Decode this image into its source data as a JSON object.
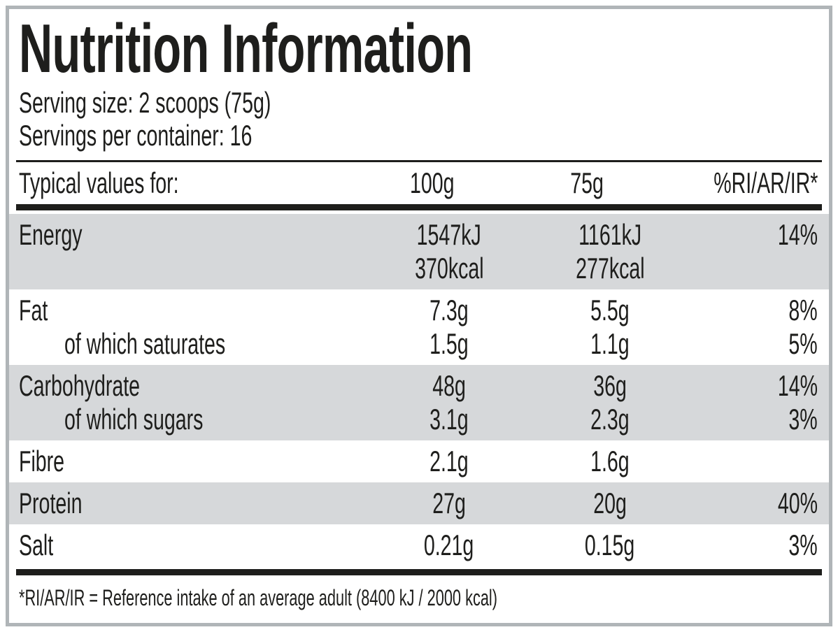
{
  "colors": {
    "text": "#1e1e1c",
    "shaded_row": "#d6d8da",
    "frame_border": "#b0b5b8",
    "background": "#ffffff"
  },
  "header": {
    "title": "Nutrition Information",
    "serving_size": "Serving size: 2 scoops (75g)",
    "servings_per_container": "Servings per container: 16"
  },
  "table": {
    "columns": [
      "Typical values for:",
      "100g",
      "75g",
      "%RI/AR/IR*"
    ],
    "rows": [
      {
        "label": "Energy",
        "values_100g": [
          "1547kJ",
          "370kcal"
        ],
        "values_75g": [
          "1161kJ",
          "277kcal"
        ],
        "ri": "14%"
      },
      {
        "label": "Fat",
        "value_100g": "7.3g",
        "value_75g": "5.5g",
        "ri": "8%"
      },
      {
        "label": "of which saturates",
        "value_100g": "1.5g",
        "value_75g": "1.1g",
        "ri": "5%"
      },
      {
        "label": "Carbohydrate",
        "value_100g": "48g",
        "value_75g": "36g",
        "ri": "14%"
      },
      {
        "label": "of which sugars",
        "value_100g": "3.1g",
        "value_75g": "2.3g",
        "ri": "3%"
      },
      {
        "label": "Fibre",
        "value_100g": "2.1g",
        "value_75g": "1.6g",
        "ri": ""
      },
      {
        "label": "Protein",
        "value_100g": "27g",
        "value_75g": "20g",
        "ri": "40%"
      },
      {
        "label": "Salt",
        "value_100g": "0.21g",
        "value_75g": "0.15g",
        "ri": "3%"
      }
    ],
    "footnote": "*RI/AR/IR = Reference intake of an average adult (8400 kJ / 2000 kcal)"
  }
}
